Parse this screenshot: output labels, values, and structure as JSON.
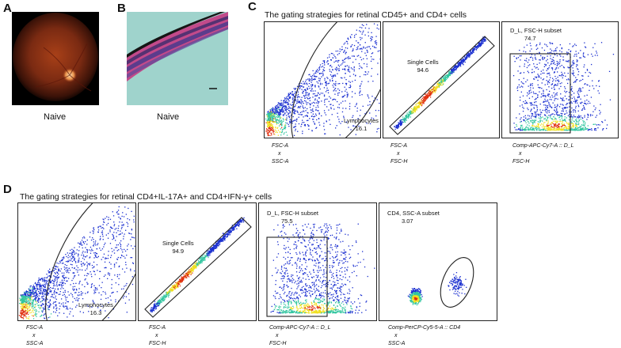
{
  "panels": {
    "A": {
      "letter": "A",
      "caption": "Naive"
    },
    "B": {
      "letter": "B",
      "caption": "Naive"
    },
    "C": {
      "letter": "C",
      "title": "The gating strategies for retinal CD45+ and CD4+ cells",
      "plots": [
        {
          "gate_name": "Lymphocytes",
          "gate_value": "16.1",
          "x_axis": "FSC-A",
          "sep": "x",
          "y_axis": "SSC-A"
        },
        {
          "gate_name": "Single Cells",
          "gate_value": "94.6",
          "x_axis": "FSC-A",
          "sep": "x",
          "y_axis": "FSC-H"
        },
        {
          "gate_name": "D_L, FSC-H subset",
          "gate_value": "74.7",
          "x_axis": "Comp-APC-Cy7-A :: D_L",
          "sep": "x",
          "y_axis": "FSC-H"
        }
      ]
    },
    "D": {
      "letter": "D",
      "title": "The gating strategies for retinal CD4+IL-17A+ and CD4+IFN-γ+ cells",
      "plots": [
        {
          "gate_name": "Lymphocytes",
          "gate_value": "16.3",
          "x_axis": "FSC-A",
          "sep": "x",
          "y_axis": "SSC-A"
        },
        {
          "gate_name": "Single Cells",
          "gate_value": "94.9",
          "x_axis": "FSC-A",
          "sep": "x",
          "y_axis": "FSC-H"
        },
        {
          "gate_name": "D_L, FSC-H subset",
          "gate_value": "75.5",
          "x_axis": "Comp-APC-Cy7-A :: D_L",
          "sep": "x",
          "y_axis": "FSC-H"
        },
        {
          "gate_name": "CD4, SSC-A subset",
          "gate_value": "3.07",
          "x_axis": "Comp-PerCP-Cy5-5-A :: CD4",
          "sep": "x",
          "y_axis": "SSC-A"
        }
      ]
    }
  },
  "colors": {
    "fundus_dark": "#1a0804",
    "fundus_mid": "#7a2a12",
    "histology_bg": "#9fd3cc",
    "histology_tissue": "#c24a8a",
    "histology_nuclei": "#4a3a8c",
    "density_low": "#1a2fd0",
    "density_mid": "#33c6a0",
    "density_high": "#f0e020",
    "density_peak": "#e03010"
  }
}
